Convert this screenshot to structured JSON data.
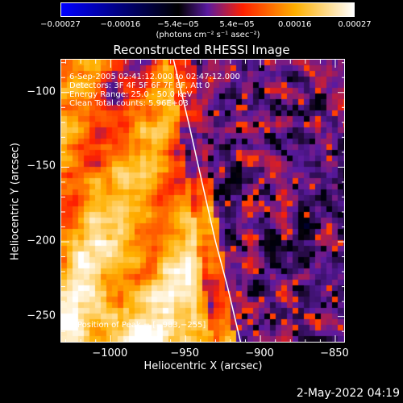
{
  "chart_data": {
    "type": "heatmap",
    "title": "Reconstructed RHESSI Image",
    "xlabel": "Heliocentric X (arcsec)",
    "ylabel": "Heliocentric Y (arcsec)",
    "xlim": [
      -1033,
      -843
    ],
    "ylim": [
      -268,
      -78
    ],
    "xticks": [
      -1000,
      -950,
      -900,
      -850
    ],
    "xtick_labels": [
      "−1000",
      "−950",
      "−900",
      "−850"
    ],
    "yticks": [
      -100,
      -150,
      -200,
      -250
    ],
    "ytick_labels": [
      "−100",
      "−150",
      "−200",
      "−250"
    ],
    "colorbar": {
      "range": [
        -0.00027,
        0.00027
      ],
      "tick_values": [
        -0.00027,
        -0.00016,
        -5.4e-05,
        5.4e-05,
        0.00016,
        0.00027
      ],
      "tick_labels": [
        "−0.00027",
        "−0.00016",
        "−5.4e−05",
        "5.4e−05",
        "0.00016",
        "0.00027"
      ],
      "unit_label": "(photons cm⁻² s⁻¹ asec⁻²)",
      "colors": [
        "#0000ff",
        "#000000",
        "#5a1aa0",
        "#ff2000",
        "#ffb000",
        "#ffffff"
      ]
    },
    "annotations": [
      "6-Sep-2005 02:41:12.000 to 02:47:12.000",
      "Detectors: 3F 4F 5F 6F 7F 8F, Att 0",
      "Energy Range: 25.0 - 50.0 keV",
      "Clean     Total counts: 5.96E+03"
    ],
    "peak_label": "Position of Peak = [−983,−255]",
    "peak": [
      -983,
      -255
    ],
    "limb_curve": [
      [
        -958,
        -78
      ],
      [
        -948,
        -120
      ],
      [
        -939,
        -160
      ],
      [
        -930,
        -200
      ],
      [
        -922,
        -230
      ],
      [
        -913,
        -268
      ]
    ]
  },
  "footer": {
    "date": "2-May-2022 04:19"
  }
}
